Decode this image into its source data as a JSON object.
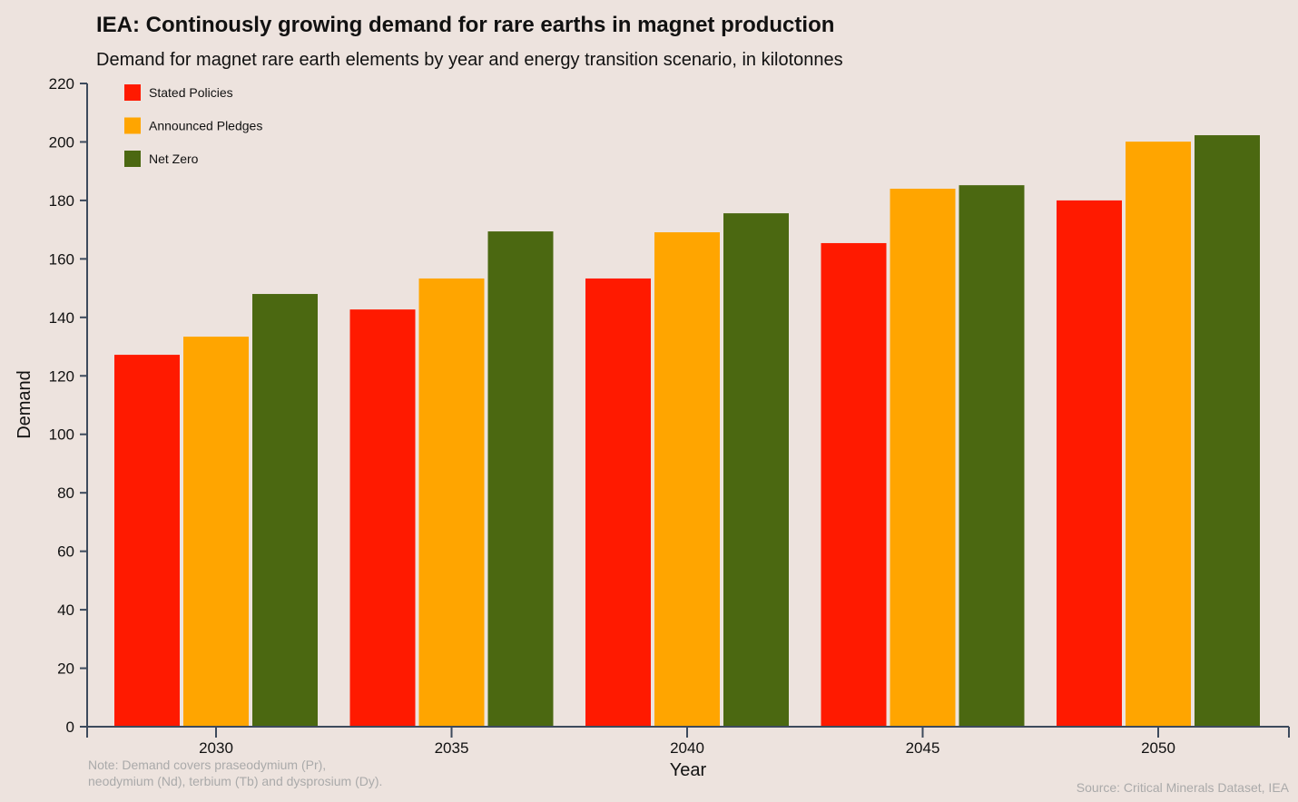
{
  "title": "IEA: Continously growing demand for rare earths in magnet production",
  "subtitle": "Demand for magnet rare earth elements by year and energy transition scenario, in kilotonnes",
  "note_line1": "Note: Demand covers praseodymium (Pr),",
  "note_line2": "neodymium (Nd), terbium (Tb) and dysprosium (Dy).",
  "source": "Source: Critical Minerals Dataset, IEA",
  "chart_data": {
    "type": "bar",
    "title": "IEA: Continously growing demand for rare earths in magnet production",
    "xlabel": "Year",
    "ylabel": "Demand",
    "ylim": [
      0,
      220
    ],
    "yticks": [
      0,
      20,
      40,
      60,
      80,
      100,
      120,
      140,
      160,
      180,
      200,
      220
    ],
    "categories": [
      "2030",
      "2035",
      "2040",
      "2045",
      "2050"
    ],
    "legend_position": "top-left",
    "grid": false,
    "series": [
      {
        "name": "Stated Policies",
        "color": "#ff1a00",
        "values": [
          127.2,
          142.7,
          153.3,
          165.4,
          180.0
        ]
      },
      {
        "name": "Announced Pledges",
        "color": "#ffa500",
        "values": [
          133.4,
          153.3,
          169.1,
          184.0,
          200.1
        ]
      },
      {
        "name": "Net Zero",
        "color": "#4b6811",
        "values": [
          148.0,
          169.4,
          175.6,
          185.2,
          202.3
        ]
      }
    ]
  }
}
